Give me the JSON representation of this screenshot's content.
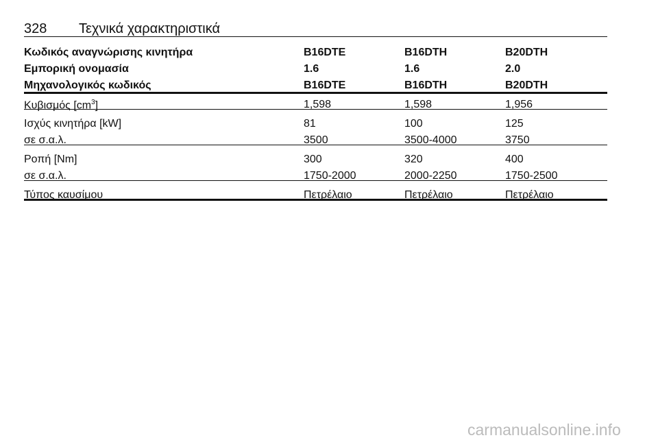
{
  "header": {
    "page_number": "328",
    "title": "Τεχνικά χαρακτηριστικά"
  },
  "table": {
    "head": [
      [
        "Κωδικός αναγνώρισης κινητήρα",
        "B16DTE",
        "B16DTH",
        "B20DTH"
      ],
      [
        "Εμπορική ονομασία",
        "1.6",
        "1.6",
        "2.0"
      ],
      [
        "Μηχανολογικός κωδικός",
        "B16DTE",
        "B16DTH",
        "B20DTH"
      ]
    ],
    "groups": [
      [
        [
          {
            "text": "Κυβισμός [cm",
            "sup": "3",
            "tail": "]"
          },
          "1,598",
          "1,598",
          "1,956"
        ]
      ],
      [
        [
          "Ισχύς κινητήρα [kW]",
          "81",
          "100",
          "125"
        ],
        [
          "σε σ.α.λ.",
          "3500",
          "3500-4000",
          "3750"
        ]
      ],
      [
        [
          "Ροπή [Nm]",
          "300",
          "320",
          "400"
        ],
        [
          "σε σ.α.λ.",
          "1750-2000",
          "2000-2250",
          "1750-2500"
        ]
      ],
      [
        [
          "Τύπος καυσίμου",
          "Πετρέλαιο",
          "Πετρέλαιο",
          "Πετρέλαιο"
        ]
      ]
    ]
  },
  "watermark": "carmanualsonline.info"
}
